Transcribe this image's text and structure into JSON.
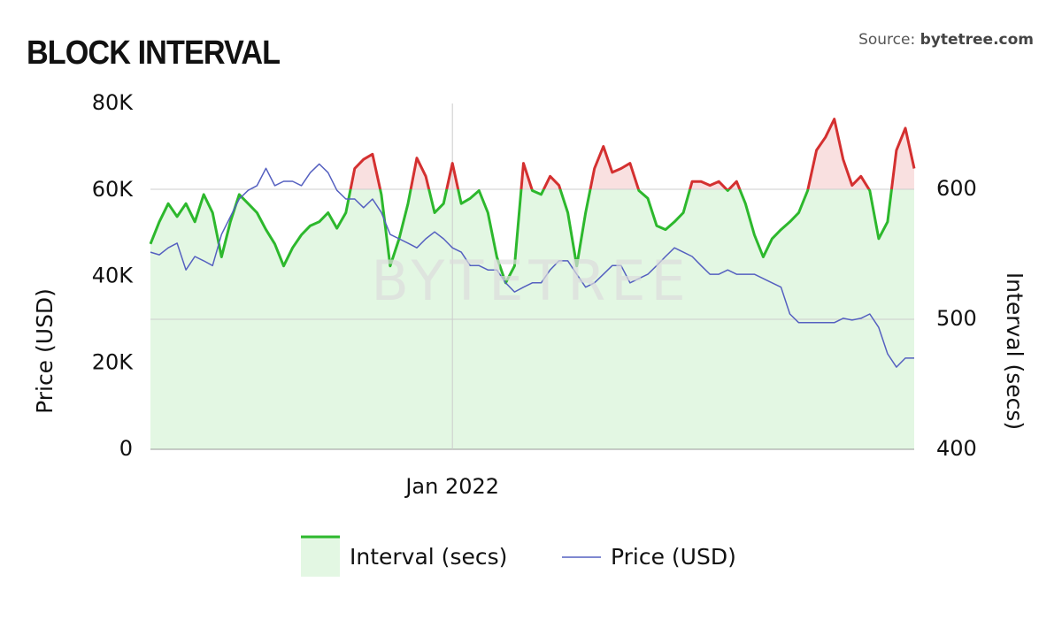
{
  "chart_data": {
    "type": "line",
    "title": "BLOCK INTERVAL",
    "source_label": "Source:",
    "source_site": "bytetree.com",
    "watermark": "BYTETREE",
    "y_label": "Price (USD)",
    "y2_label": "Interval (secs)",
    "categories": [
      null,
      null,
      null,
      null,
      null,
      null,
      null,
      null,
      null,
      null,
      null,
      null,
      null,
      null,
      null,
      null,
      null,
      null,
      null,
      null,
      null,
      null,
      null,
      null,
      null,
      null,
      null,
      null,
      null,
      null,
      null,
      null,
      null,
      null,
      "Jan 2022",
      null,
      null,
      null,
      null,
      null,
      null,
      null,
      null,
      null,
      null,
      null,
      null,
      null,
      null,
      null,
      null,
      null,
      null,
      null,
      null,
      null,
      null,
      null,
      null,
      null,
      null,
      null,
      null,
      null,
      null,
      null,
      null,
      null,
      null,
      null,
      null,
      null,
      null,
      null,
      null,
      null,
      null,
      null,
      null,
      null,
      null,
      null,
      null,
      null,
      null,
      null,
      null
    ],
    "ylim": [
      0,
      80000
    ],
    "yticks": [
      0,
      {
        "value": 20000,
        "label": "20K"
      },
      {
        "value": 40000,
        "label": "40K"
      },
      {
        "value": 60000,
        "label": "60K"
      },
      {
        "value": 80000,
        "label": "80K"
      }
    ],
    "y2lim": [
      400,
      666
    ],
    "y2ticks": [
      400,
      500,
      600
    ],
    "threshold": 600,
    "grid": true,
    "series": [
      {
        "name": "Interval (secs)",
        "axis": "y2",
        "color": "#2db82d",
        "above_color": "#d43030",
        "fill": "#e3f7e3",
        "above_fill": "#f9e0e0",
        "values": [
          558,
          575,
          589,
          579,
          589,
          575,
          596,
          582,
          548,
          575,
          596,
          589,
          582,
          569,
          558,
          541,
          555,
          565,
          572,
          575,
          582,
          570,
          582,
          616,
          623,
          627,
          596,
          541,
          562,
          589,
          624,
          610,
          582,
          589,
          620,
          589,
          593,
          599,
          582,
          548,
          528,
          541,
          620,
          599,
          596,
          610,
          603,
          582,
          541,
          582,
          616,
          633,
          613,
          616,
          620,
          599,
          593,
          572,
          569,
          575,
          582,
          606,
          606,
          603,
          606,
          599,
          606,
          589,
          565,
          548,
          562,
          569,
          575,
          582,
          599,
          630,
          640,
          654,
          623,
          603,
          610,
          599,
          562,
          575,
          630,
          647,
          616
        ]
      },
      {
        "name": "Price (USD)",
        "color": "#5560c0",
        "values": [
          45600,
          45000,
          46600,
          47700,
          41500,
          44600,
          43600,
          42500,
          49700,
          53800,
          57900,
          59900,
          61000,
          65000,
          61000,
          62000,
          62000,
          61000,
          64000,
          66000,
          64000,
          59900,
          57900,
          57900,
          55900,
          57900,
          54800,
          49700,
          48700,
          47700,
          46600,
          48700,
          50300,
          48700,
          46600,
          45600,
          42500,
          42500,
          41500,
          41500,
          38500,
          36400,
          37500,
          38500,
          38500,
          41500,
          43600,
          43600,
          40500,
          37500,
          38500,
          40500,
          42500,
          42500,
          38500,
          39500,
          40500,
          42500,
          44600,
          46600,
          45600,
          44600,
          42500,
          40500,
          40500,
          41500,
          40500,
          40500,
          40500,
          39500,
          38500,
          37500,
          31300,
          29300,
          29300,
          29300,
          29300,
          29300,
          30300,
          29900,
          30300,
          31300,
          28200,
          22100,
          19000,
          21100,
          21100
        ]
      }
    ]
  }
}
